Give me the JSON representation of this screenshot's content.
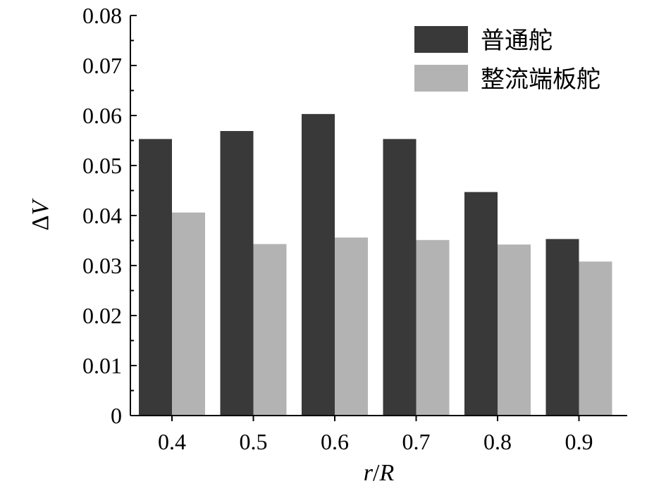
{
  "chart_data": {
    "type": "bar",
    "categories": [
      "0.4",
      "0.5",
      "0.6",
      "0.7",
      "0.8",
      "0.9"
    ],
    "series": [
      {
        "name": "普通舵",
        "values": [
          0.0553,
          0.0569,
          0.0603,
          0.0553,
          0.0447,
          0.0353
        ],
        "color": "#393939"
      },
      {
        "name": "整流端板舵",
        "values": [
          0.0406,
          0.0343,
          0.0356,
          0.0351,
          0.0342,
          0.0308
        ],
        "color": "#b3b3b3"
      }
    ],
    "xlabel": {
      "italic1": "r",
      "sep": "/",
      "italic2": "R"
    },
    "ylabel": {
      "prefix": "Δ",
      "italic": "V"
    },
    "ylim": [
      0,
      0.08
    ],
    "yticks": [
      "0",
      "0.01",
      "0.02",
      "0.03",
      "0.04",
      "0.05",
      "0.06",
      "0.07",
      "0.08"
    ],
    "legend_position": "top-right",
    "grid": false
  }
}
